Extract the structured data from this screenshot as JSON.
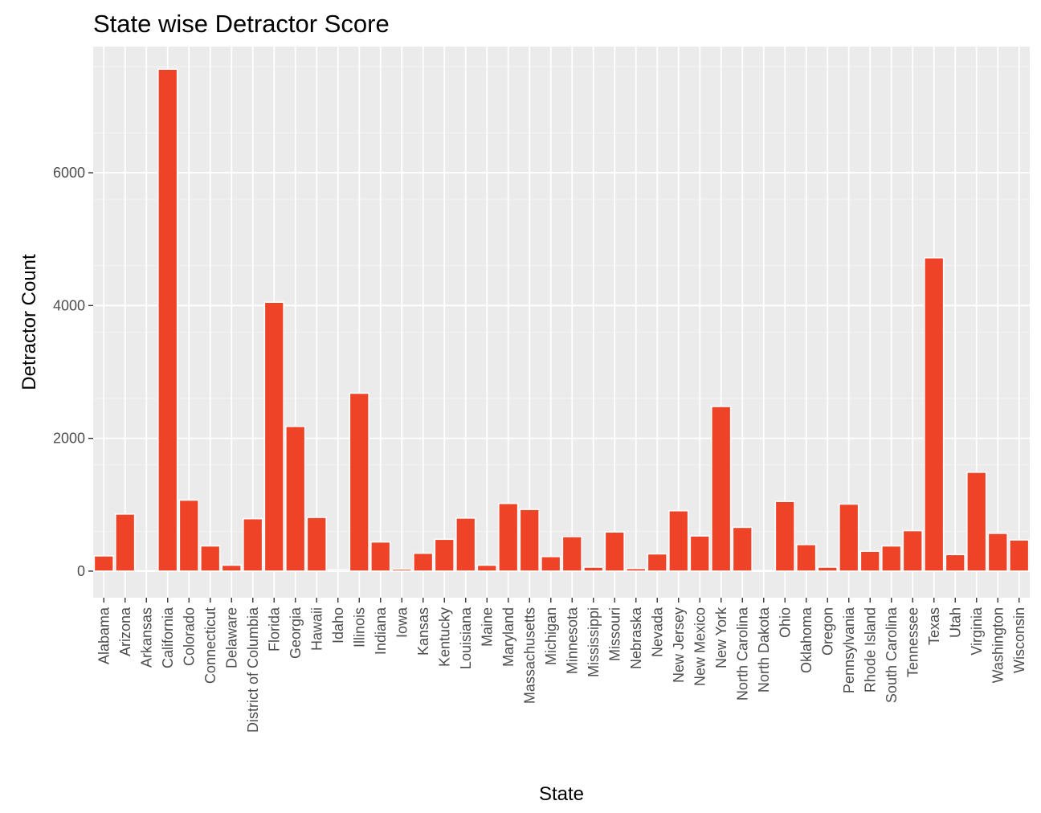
{
  "chart_data": {
    "type": "bar",
    "title": "State wise Detractor Score",
    "xlabel": "State",
    "ylabel": "Detractor Count",
    "ylim": [
      -400,
      7900
    ],
    "yticks": [
      0,
      2000,
      4000,
      6000
    ],
    "ytick_labels": [
      "0",
      "2000",
      "4000",
      "6000"
    ],
    "grid": true,
    "legend": "none",
    "bar_color": "#ee4326",
    "bar_outline": "#ffffff",
    "panel_background": "#ebebeb",
    "grid_color": "#ffffff",
    "categories": [
      "Alabama",
      "Arizona",
      "Arkansas",
      "California",
      "Colorado",
      "Connecticut",
      "Delaware",
      "District of Columbia",
      "Florida",
      "Georgia",
      "Hawaii",
      "Idaho",
      "Illinois",
      "Indiana",
      "Iowa",
      "Kansas",
      "Kentucky",
      "Louisiana",
      "Maine",
      "Maryland",
      "Massachusetts",
      "Michigan",
      "Minnesota",
      "Mississippi",
      "Missouri",
      "Nebraska",
      "Nevada",
      "New Jersey",
      "New Mexico",
      "New York",
      "North Carolina",
      "North Dakota",
      "Ohio",
      "Oklahoma",
      "Oregon",
      "Pennsylvania",
      "Rhode Island",
      "South Carolina",
      "Tennessee",
      "Texas",
      "Utah",
      "Virginia",
      "Washington",
      "Wisconsin"
    ],
    "values": [
      230,
      860,
      5,
      7560,
      1070,
      380,
      90,
      790,
      4050,
      2180,
      810,
      20,
      2680,
      440,
      30,
      270,
      480,
      800,
      90,
      1020,
      930,
      220,
      520,
      60,
      590,
      40,
      260,
      910,
      530,
      2480,
      660,
      10,
      1050,
      400,
      60,
      1010,
      300,
      380,
      610,
      4720,
      250,
      1490,
      570,
      470
    ]
  }
}
